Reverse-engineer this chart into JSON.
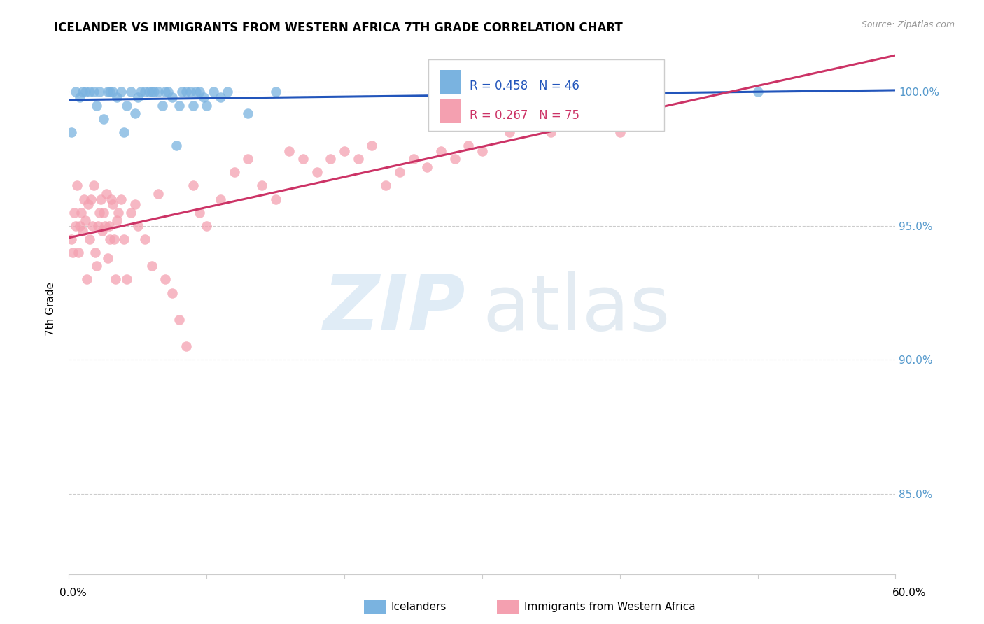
{
  "title": "ICELANDER VS IMMIGRANTS FROM WESTERN AFRICA 7TH GRADE CORRELATION CHART",
  "source": "Source: ZipAtlas.com",
  "ylabel": "7th Grade",
  "watermark_zip": "ZIP",
  "watermark_atlas": "atlas",
  "y_ticks": [
    85.0,
    90.0,
    95.0,
    100.0
  ],
  "y_tick_labels": [
    "85.0%",
    "90.0%",
    "95.0%",
    "100.0%"
  ],
  "blue_R": 0.458,
  "blue_N": 46,
  "pink_R": 0.267,
  "pink_N": 75,
  "blue_color": "#7ab3e0",
  "pink_color": "#f4a0b0",
  "blue_line_color": "#2255bb",
  "pink_line_color": "#cc3366",
  "blue_dash_color": "#b0c8e8",
  "legend_label_blue": "Icelanders",
  "legend_label_pink": "Immigrants from Western Africa",
  "blue_x": [
    0.2,
    0.5,
    0.8,
    1.0,
    1.2,
    1.5,
    1.8,
    2.0,
    2.2,
    2.5,
    2.8,
    3.0,
    3.2,
    3.5,
    3.8,
    4.0,
    4.2,
    4.5,
    4.8,
    5.0,
    5.2,
    5.5,
    5.8,
    6.0,
    6.2,
    6.5,
    6.8,
    7.0,
    7.2,
    7.5,
    7.8,
    8.0,
    8.2,
    8.5,
    8.8,
    9.0,
    9.2,
    9.5,
    9.8,
    10.0,
    10.5,
    11.0,
    11.5,
    13.0,
    15.0,
    50.0
  ],
  "blue_y": [
    98.5,
    100.0,
    99.8,
    100.0,
    100.0,
    100.0,
    100.0,
    99.5,
    100.0,
    99.0,
    100.0,
    100.0,
    100.0,
    99.8,
    100.0,
    98.5,
    99.5,
    100.0,
    99.2,
    99.8,
    100.0,
    100.0,
    100.0,
    100.0,
    100.0,
    100.0,
    99.5,
    100.0,
    100.0,
    99.8,
    98.0,
    99.5,
    100.0,
    100.0,
    100.0,
    99.5,
    100.0,
    100.0,
    99.8,
    99.5,
    100.0,
    99.8,
    100.0,
    99.2,
    100.0,
    100.0
  ],
  "pink_x": [
    0.2,
    0.3,
    0.4,
    0.5,
    0.6,
    0.7,
    0.8,
    0.9,
    1.0,
    1.1,
    1.2,
    1.3,
    1.4,
    1.5,
    1.6,
    1.7,
    1.8,
    1.9,
    2.0,
    2.1,
    2.2,
    2.3,
    2.4,
    2.5,
    2.6,
    2.7,
    2.8,
    2.9,
    3.0,
    3.1,
    3.2,
    3.3,
    3.4,
    3.5,
    3.6,
    3.8,
    4.0,
    4.2,
    4.5,
    4.8,
    5.0,
    5.5,
    6.0,
    6.5,
    7.0,
    7.5,
    8.0,
    8.5,
    9.0,
    9.5,
    10.0,
    11.0,
    12.0,
    13.0,
    14.0,
    15.0,
    16.0,
    17.0,
    18.0,
    19.0,
    20.0,
    21.0,
    22.0,
    23.0,
    24.0,
    25.0,
    26.0,
    27.0,
    28.0,
    29.0,
    30.0,
    32.0,
    35.0,
    38.0,
    40.0
  ],
  "pink_y": [
    94.5,
    94.0,
    95.5,
    95.0,
    96.5,
    94.0,
    95.0,
    95.5,
    94.8,
    96.0,
    95.2,
    93.0,
    95.8,
    94.5,
    96.0,
    95.0,
    96.5,
    94.0,
    93.5,
    95.0,
    95.5,
    96.0,
    94.8,
    95.5,
    95.0,
    96.2,
    93.8,
    95.0,
    94.5,
    96.0,
    95.8,
    94.5,
    93.0,
    95.2,
    95.5,
    96.0,
    94.5,
    93.0,
    95.5,
    95.8,
    95.0,
    94.5,
    93.5,
    96.2,
    93.0,
    92.5,
    91.5,
    90.5,
    96.5,
    95.5,
    95.0,
    96.0,
    97.0,
    97.5,
    96.5,
    96.0,
    97.8,
    97.5,
    97.0,
    97.5,
    97.8,
    97.5,
    98.0,
    96.5,
    97.0,
    97.5,
    97.2,
    97.8,
    97.5,
    98.0,
    97.8,
    98.5,
    98.5,
    99.0,
    98.5
  ],
  "xlim": [
    0,
    60
  ],
  "ylim": [
    82.0,
    101.8
  ],
  "tick_color": "#5599cc",
  "grid_color": "#cccccc"
}
